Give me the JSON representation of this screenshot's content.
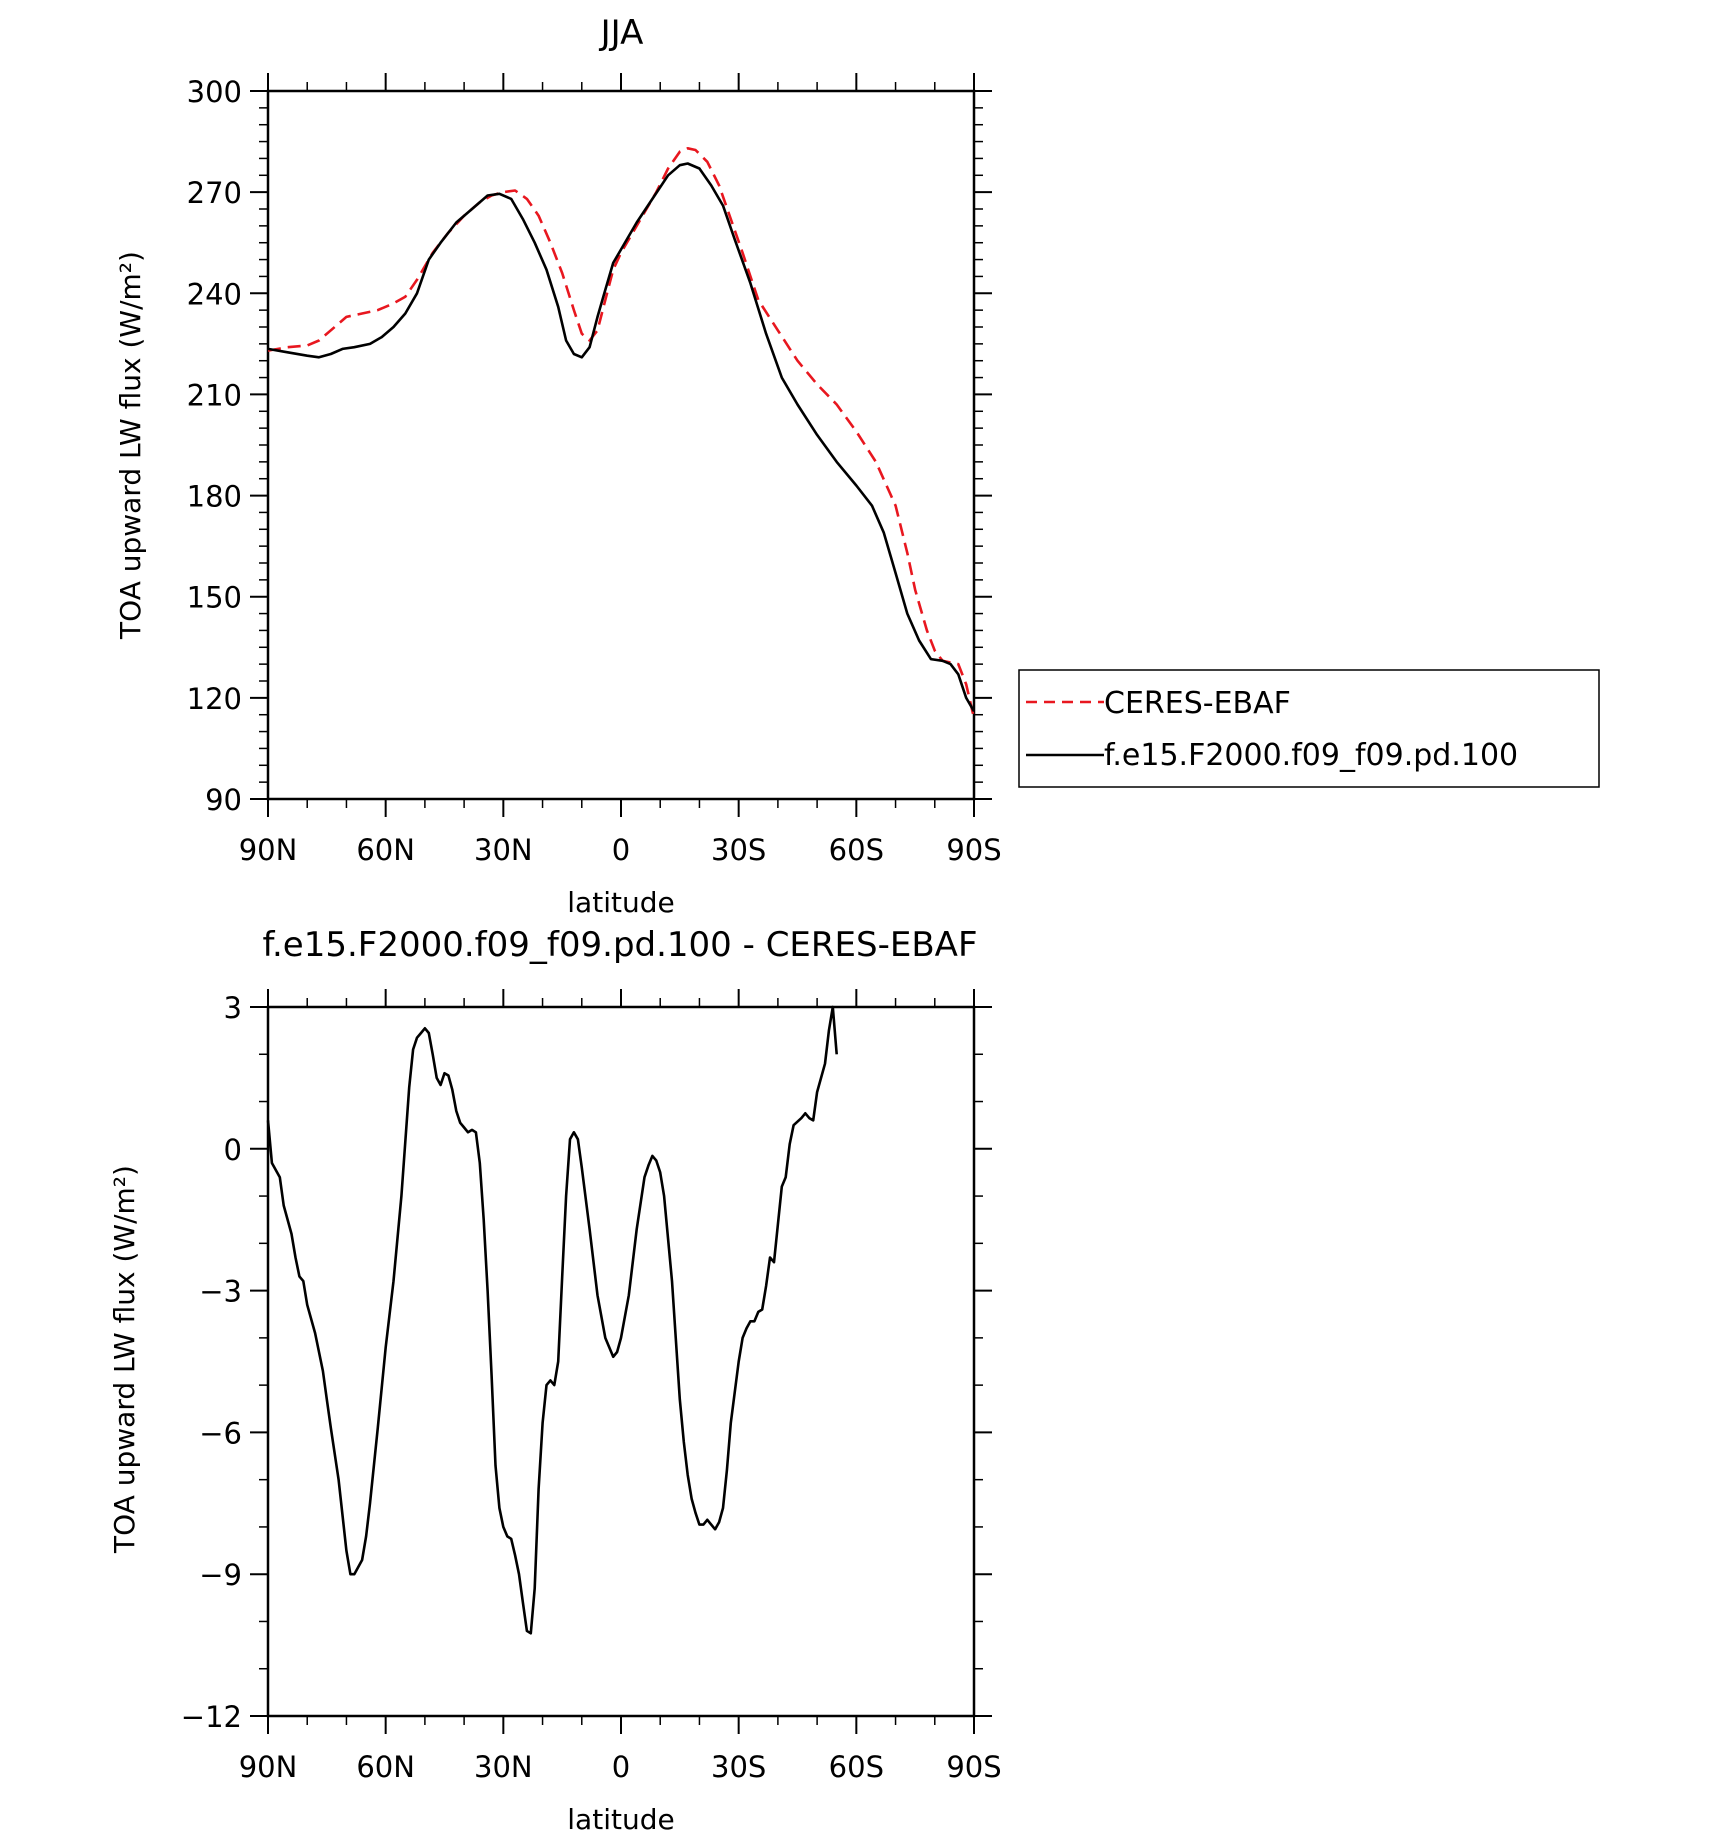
{
  "chart_data": [
    {
      "type": "line",
      "title": "JJA",
      "xlabel": "latitude",
      "ylabel": "TOA upward LW flux (W/m²)",
      "xlim": [
        90,
        -90
      ],
      "x_axis_direction": "north-to-south",
      "ylim": [
        90,
        300
      ],
      "x_ticks": [
        90,
        60,
        30,
        0,
        -30,
        -60,
        -90
      ],
      "x_tick_labels": [
        "90N",
        "60N",
        "30N",
        "0",
        "30S",
        "60S",
        "90S"
      ],
      "y_ticks": [
        90,
        120,
        150,
        180,
        210,
        240,
        270,
        300
      ],
      "y_tick_labels": [
        "90",
        "120",
        "150",
        "180",
        "210",
        "240",
        "270",
        "300"
      ],
      "legend_position": "right",
      "series": [
        {
          "name": "CERES-EBAF",
          "color": "#e8171f",
          "dash": "dashed",
          "points": [
            [
              90,
              223
            ],
            [
              85,
              224
            ],
            [
              80,
              224.5
            ],
            [
              77,
              226
            ],
            [
              73,
              230
            ],
            [
              70,
              233
            ],
            [
              66,
              234
            ],
            [
              62,
              235
            ],
            [
              58,
              237
            ],
            [
              55,
              239
            ],
            [
              52,
              244
            ],
            [
              48,
              252
            ],
            [
              44,
              258
            ],
            [
              40,
              263
            ],
            [
              36,
              267
            ],
            [
              33,
              269
            ],
            [
              30,
              270
            ],
            [
              27,
              270.5
            ],
            [
              24,
              268
            ],
            [
              21,
              263
            ],
            [
              18,
              255
            ],
            [
              15,
              246
            ],
            [
              12,
              235
            ],
            [
              10,
              228
            ],
            [
              8,
              226
            ],
            [
              6,
              229
            ],
            [
              4,
              238
            ],
            [
              2,
              247
            ],
            [
              0,
              252
            ],
            [
              -3,
              258
            ],
            [
              -6,
              264
            ],
            [
              -9,
              270
            ],
            [
              -12,
              277
            ],
            [
              -15,
              282
            ],
            [
              -17,
              283
            ],
            [
              -19,
              282.5
            ],
            [
              -22,
              279
            ],
            [
              -25,
              272
            ],
            [
              -28,
              262
            ],
            [
              -31,
              252
            ],
            [
              -35,
              238
            ],
            [
              -40,
              229
            ],
            [
              -45,
              220
            ],
            [
              -50,
              213
            ],
            [
              -55,
              207
            ],
            [
              -60,
              199
            ],
            [
              -65,
              190
            ],
            [
              -70,
              177
            ],
            [
              -73,
              163
            ],
            [
              -75,
              152
            ],
            [
              -78,
              140
            ],
            [
              -80,
              134
            ],
            [
              -82,
              131
            ],
            [
              -84,
              130.5
            ],
            [
              -86,
              130
            ],
            [
              -88,
              124
            ],
            [
              -90,
              114
            ]
          ]
        },
        {
          "name": "f.e15.F2000.f09_f09.pd.100",
          "color": "#000000",
          "dash": "solid",
          "points": [
            [
              90,
              223.5
            ],
            [
              85,
              222.5
            ],
            [
              80,
              221.5
            ],
            [
              77,
              221
            ],
            [
              74,
              222
            ],
            [
              71,
              223.5
            ],
            [
              68,
              224
            ],
            [
              64,
              225
            ],
            [
              61,
              227
            ],
            [
              58,
              230
            ],
            [
              55,
              234
            ],
            [
              52,
              240
            ],
            [
              49,
              250
            ],
            [
              46,
              255
            ],
            [
              42,
              261
            ],
            [
              38,
              265
            ],
            [
              34,
              269
            ],
            [
              31,
              269.5
            ],
            [
              28,
              268
            ],
            [
              25,
              262
            ],
            [
              22,
              255
            ],
            [
              19,
              247
            ],
            [
              16,
              236
            ],
            [
              14,
              226
            ],
            [
              12,
              222
            ],
            [
              10,
              221
            ],
            [
              8,
              224
            ],
            [
              6,
              233
            ],
            [
              4,
              241
            ],
            [
              2,
              249
            ],
            [
              0,
              253
            ],
            [
              -4,
              261
            ],
            [
              -8,
              268
            ],
            [
              -12,
              275
            ],
            [
              -15,
              278
            ],
            [
              -17,
              278.5
            ],
            [
              -20,
              277
            ],
            [
              -23,
              272
            ],
            [
              -26,
              266
            ],
            [
              -29,
              256
            ],
            [
              -33,
              243
            ],
            [
              -37,
              228
            ],
            [
              -41,
              215
            ],
            [
              -45,
              207
            ],
            [
              -50,
              198
            ],
            [
              -55,
              190
            ],
            [
              -60,
              183
            ],
            [
              -64,
              177
            ],
            [
              -67,
              169
            ],
            [
              -70,
              157
            ],
            [
              -73,
              145
            ],
            [
              -76,
              137
            ],
            [
              -79,
              131.5
            ],
            [
              -82,
              131
            ],
            [
              -84,
              130
            ],
            [
              -86,
              127
            ],
            [
              -88,
              120
            ],
            [
              -90,
              116
            ]
          ]
        }
      ]
    },
    {
      "type": "line",
      "title": "f.e15.F2000.f09_f09.pd.100 - CERES-EBAF",
      "xlabel": "latitude",
      "ylabel": "TOA upward LW flux (W/m²)",
      "xlim": [
        90,
        -90
      ],
      "x_axis_direction": "north-to-south",
      "ylim": [
        -12,
        3
      ],
      "x_ticks": [
        90,
        60,
        30,
        0,
        -30,
        -60,
        -90
      ],
      "x_tick_labels": [
        "90N",
        "60N",
        "30N",
        "0",
        "30S",
        "60S",
        "90S"
      ],
      "y_ticks": [
        -12,
        -9,
        -6,
        -3,
        0,
        3
      ],
      "y_tick_labels": [
        "−12",
        "−9",
        "−6",
        "−3",
        "0",
        "3"
      ],
      "series": [
        {
          "color": "#000000",
          "dash": "solid",
          "points": [
            [
              90,
              0.6
            ],
            [
              89,
              -0.3
            ],
            [
              87,
              -0.6
            ],
            [
              86,
              -1.2
            ],
            [
              84,
              -1.8
            ],
            [
              83,
              -2.3
            ],
            [
              82,
              -2.7
            ],
            [
              81,
              -2.8
            ],
            [
              80,
              -3.3
            ],
            [
              78,
              -3.9
            ],
            [
              76,
              -4.7
            ],
            [
              75,
              -5.3
            ],
            [
              74,
              -5.9
            ],
            [
              72,
              -7.0
            ],
            [
              70,
              -8.5
            ],
            [
              69,
              -9.0
            ],
            [
              68,
              -9.0
            ],
            [
              66,
              -8.7
            ],
            [
              65,
              -8.2
            ],
            [
              64,
              -7.5
            ],
            [
              62,
              -5.9
            ],
            [
              60,
              -4.2
            ],
            [
              58,
              -2.8
            ],
            [
              56,
              -1.0
            ],
            [
              54,
              1.3
            ],
            [
              53,
              2.1
            ],
            [
              52,
              2.35
            ],
            [
              51,
              2.45
            ],
            [
              50,
              2.55
            ],
            [
              49,
              2.45
            ],
            [
              48,
              2.0
            ],
            [
              47,
              1.5
            ],
            [
              46,
              1.35
            ],
            [
              45,
              1.6
            ],
            [
              44,
              1.55
            ],
            [
              43,
              1.25
            ],
            [
              42,
              0.8
            ],
            [
              41,
              0.55
            ],
            [
              40,
              0.45
            ],
            [
              39,
              0.35
            ],
            [
              38,
              0.4
            ],
            [
              37,
              0.35
            ],
            [
              36,
              -0.3
            ],
            [
              35,
              -1.5
            ],
            [
              34,
              -3.0
            ],
            [
              33,
              -4.8
            ],
            [
              32,
              -6.7
            ],
            [
              31,
              -7.6
            ],
            [
              30,
              -8.0
            ],
            [
              29,
              -8.2
            ],
            [
              28,
              -8.25
            ],
            [
              27,
              -8.6
            ],
            [
              26,
              -9.0
            ],
            [
              25,
              -9.6
            ],
            [
              24,
              -10.2
            ],
            [
              23,
              -10.25
            ],
            [
              22,
              -9.3
            ],
            [
              21,
              -7.2
            ],
            [
              20,
              -5.8
            ],
            [
              19,
              -5.0
            ],
            [
              18,
              -4.9
            ],
            [
              17,
              -5.0
            ],
            [
              16,
              -4.5
            ],
            [
              15,
              -2.7
            ],
            [
              14,
              -1.0
            ],
            [
              13,
              0.2
            ],
            [
              12,
              0.35
            ],
            [
              11,
              0.2
            ],
            [
              10,
              -0.4
            ],
            [
              8,
              -1.7
            ],
            [
              6,
              -3.1
            ],
            [
              4,
              -4.0
            ],
            [
              2,
              -4.4
            ],
            [
              1,
              -4.3
            ],
            [
              0,
              -4.0
            ],
            [
              -2,
              -3.1
            ],
            [
              -4,
              -1.7
            ],
            [
              -6,
              -0.6
            ],
            [
              -7,
              -0.35
            ],
            [
              -8,
              -0.15
            ],
            [
              -9,
              -0.25
            ],
            [
              -10,
              -0.5
            ],
            [
              -11,
              -1.0
            ],
            [
              -13,
              -2.8
            ],
            [
              -15,
              -5.3
            ],
            [
              -16,
              -6.2
            ],
            [
              -17,
              -6.9
            ],
            [
              -18,
              -7.4
            ],
            [
              -19,
              -7.7
            ],
            [
              -20,
              -7.95
            ],
            [
              -21,
              -7.95
            ],
            [
              -22,
              -7.85
            ],
            [
              -23,
              -7.95
            ],
            [
              -24,
              -8.05
            ],
            [
              -25,
              -7.9
            ],
            [
              -26,
              -7.6
            ],
            [
              -27,
              -6.8
            ],
            [
              -28,
              -5.8
            ],
            [
              -30,
              -4.5
            ],
            [
              -31,
              -4.0
            ],
            [
              -32,
              -3.8
            ],
            [
              -33,
              -3.65
            ],
            [
              -34,
              -3.65
            ],
            [
              -35,
              -3.45
            ],
            [
              -36,
              -3.4
            ],
            [
              -37,
              -2.9
            ],
            [
              -38,
              -2.3
            ],
            [
              -39,
              -2.4
            ],
            [
              -40,
              -1.6
            ],
            [
              -41,
              -0.8
            ],
            [
              -42,
              -0.6
            ],
            [
              -43,
              0.1
            ],
            [
              -44,
              0.5
            ],
            [
              -46,
              0.65
            ],
            [
              -47,
              0.75
            ],
            [
              -48,
              0.65
            ],
            [
              -49,
              0.6
            ],
            [
              -50,
              1.2
            ],
            [
              -52,
              1.8
            ],
            [
              -53,
              2.5
            ],
            [
              -54,
              3.0
            ],
            [
              -55,
              2.0
            ]
          ]
        }
      ]
    }
  ]
}
